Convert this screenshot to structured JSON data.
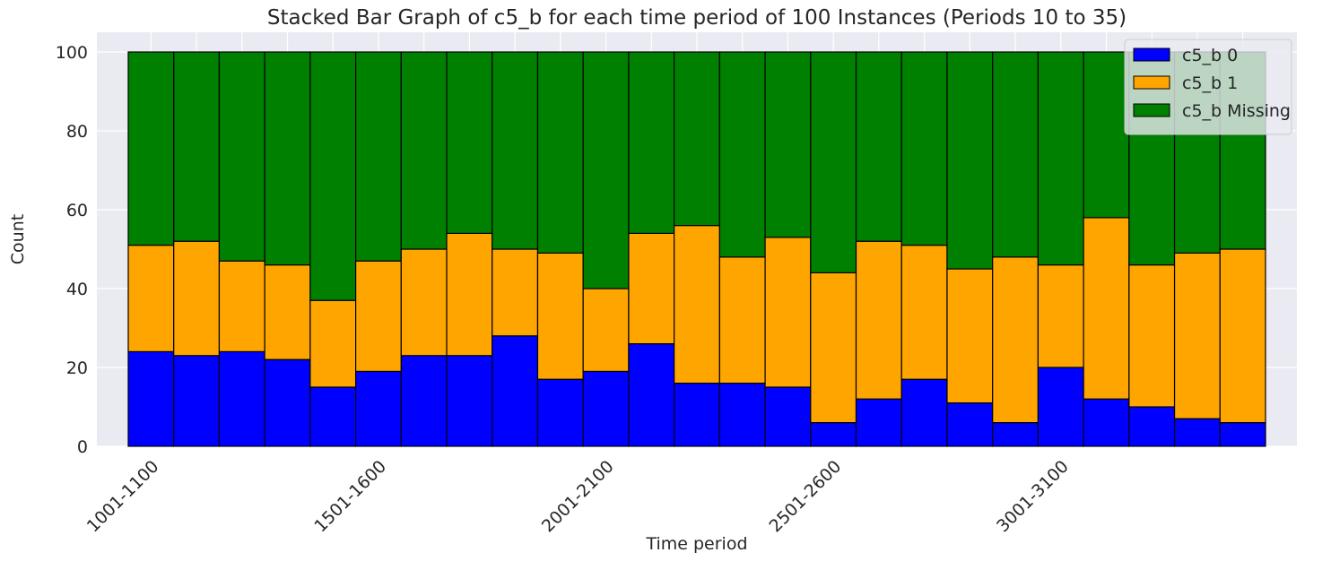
{
  "chart_data": {
    "type": "stacked_bar",
    "title": "Stacked Bar Graph of c5_b for each time period of 100 Instances (Periods 10 to 35)",
    "x_label": "Time period",
    "y_label": "Count",
    "categories": [
      "1001-1100",
      null,
      null,
      null,
      null,
      "1501-1600",
      null,
      null,
      null,
      null,
      "2001-2100",
      null,
      null,
      null,
      null,
      "2501-2600",
      null,
      null,
      null,
      null,
      "3001-3100",
      null,
      null,
      null,
      null
    ],
    "series": [
      {
        "name": "c5_b 0",
        "color": "#0000ff",
        "values": [
          24,
          23,
          24,
          22,
          15,
          19,
          23,
          23,
          28,
          17,
          19,
          26,
          16,
          16,
          15,
          6,
          12,
          17,
          11,
          6,
          20,
          12,
          10,
          7,
          6
        ]
      },
      {
        "name": "c5_b 1",
        "color": "#ffa500",
        "values": [
          27,
          29,
          23,
          24,
          22,
          28,
          27,
          31,
          22,
          32,
          21,
          28,
          40,
          32,
          38,
          38,
          40,
          34,
          34,
          42,
          26,
          46,
          36,
          42,
          44
        ]
      },
      {
        "name": "c5_b Missing",
        "color": "#008000",
        "values": [
          49,
          48,
          53,
          54,
          63,
          53,
          50,
          46,
          50,
          51,
          60,
          46,
          44,
          52,
          47,
          56,
          48,
          49,
          55,
          52,
          54,
          42,
          54,
          51,
          50
        ]
      }
    ],
    "ylim": [
      0,
      105
    ],
    "yticks": [
      0,
      20,
      40,
      60,
      80,
      100
    ],
    "grid": true,
    "legend": "upper right"
  }
}
